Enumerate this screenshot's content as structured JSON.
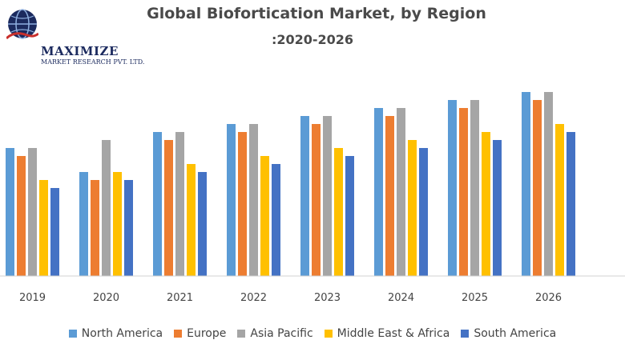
{
  "brand": {
    "name": "MAXIMIZE",
    "tagline": "MARKET RESEARCH PVT. LTD."
  },
  "chart_data": {
    "type": "bar",
    "title": "Global Biofortication Market, by Region",
    "subtitle": ":2020-2026",
    "categories": [
      "2019",
      "2020",
      "2021",
      "2022",
      "2023",
      "2024",
      "2025",
      "2026"
    ],
    "series": [
      {
        "name": "North America",
        "color": "#5b9bd5",
        "values": [
          160,
          130,
          180,
          190,
          200,
          210,
          220,
          230
        ]
      },
      {
        "name": "Europe",
        "color": "#ed7d31",
        "values": [
          150,
          120,
          170,
          180,
          190,
          200,
          210,
          220
        ]
      },
      {
        "name": "Asia Pacific",
        "color": "#a5a5a5",
        "values": [
          160,
          170,
          180,
          190,
          200,
          210,
          220,
          230
        ]
      },
      {
        "name": "Middle East & Africa",
        "color": "#ffc000",
        "values": [
          120,
          130,
          140,
          150,
          160,
          170,
          180,
          190
        ]
      },
      {
        "name": "South America",
        "color": "#4472c4",
        "values": [
          110,
          120,
          130,
          140,
          150,
          160,
          170,
          180
        ]
      }
    ],
    "ylim": [
      0,
      240
    ],
    "grid": false,
    "legend": "bottom"
  }
}
